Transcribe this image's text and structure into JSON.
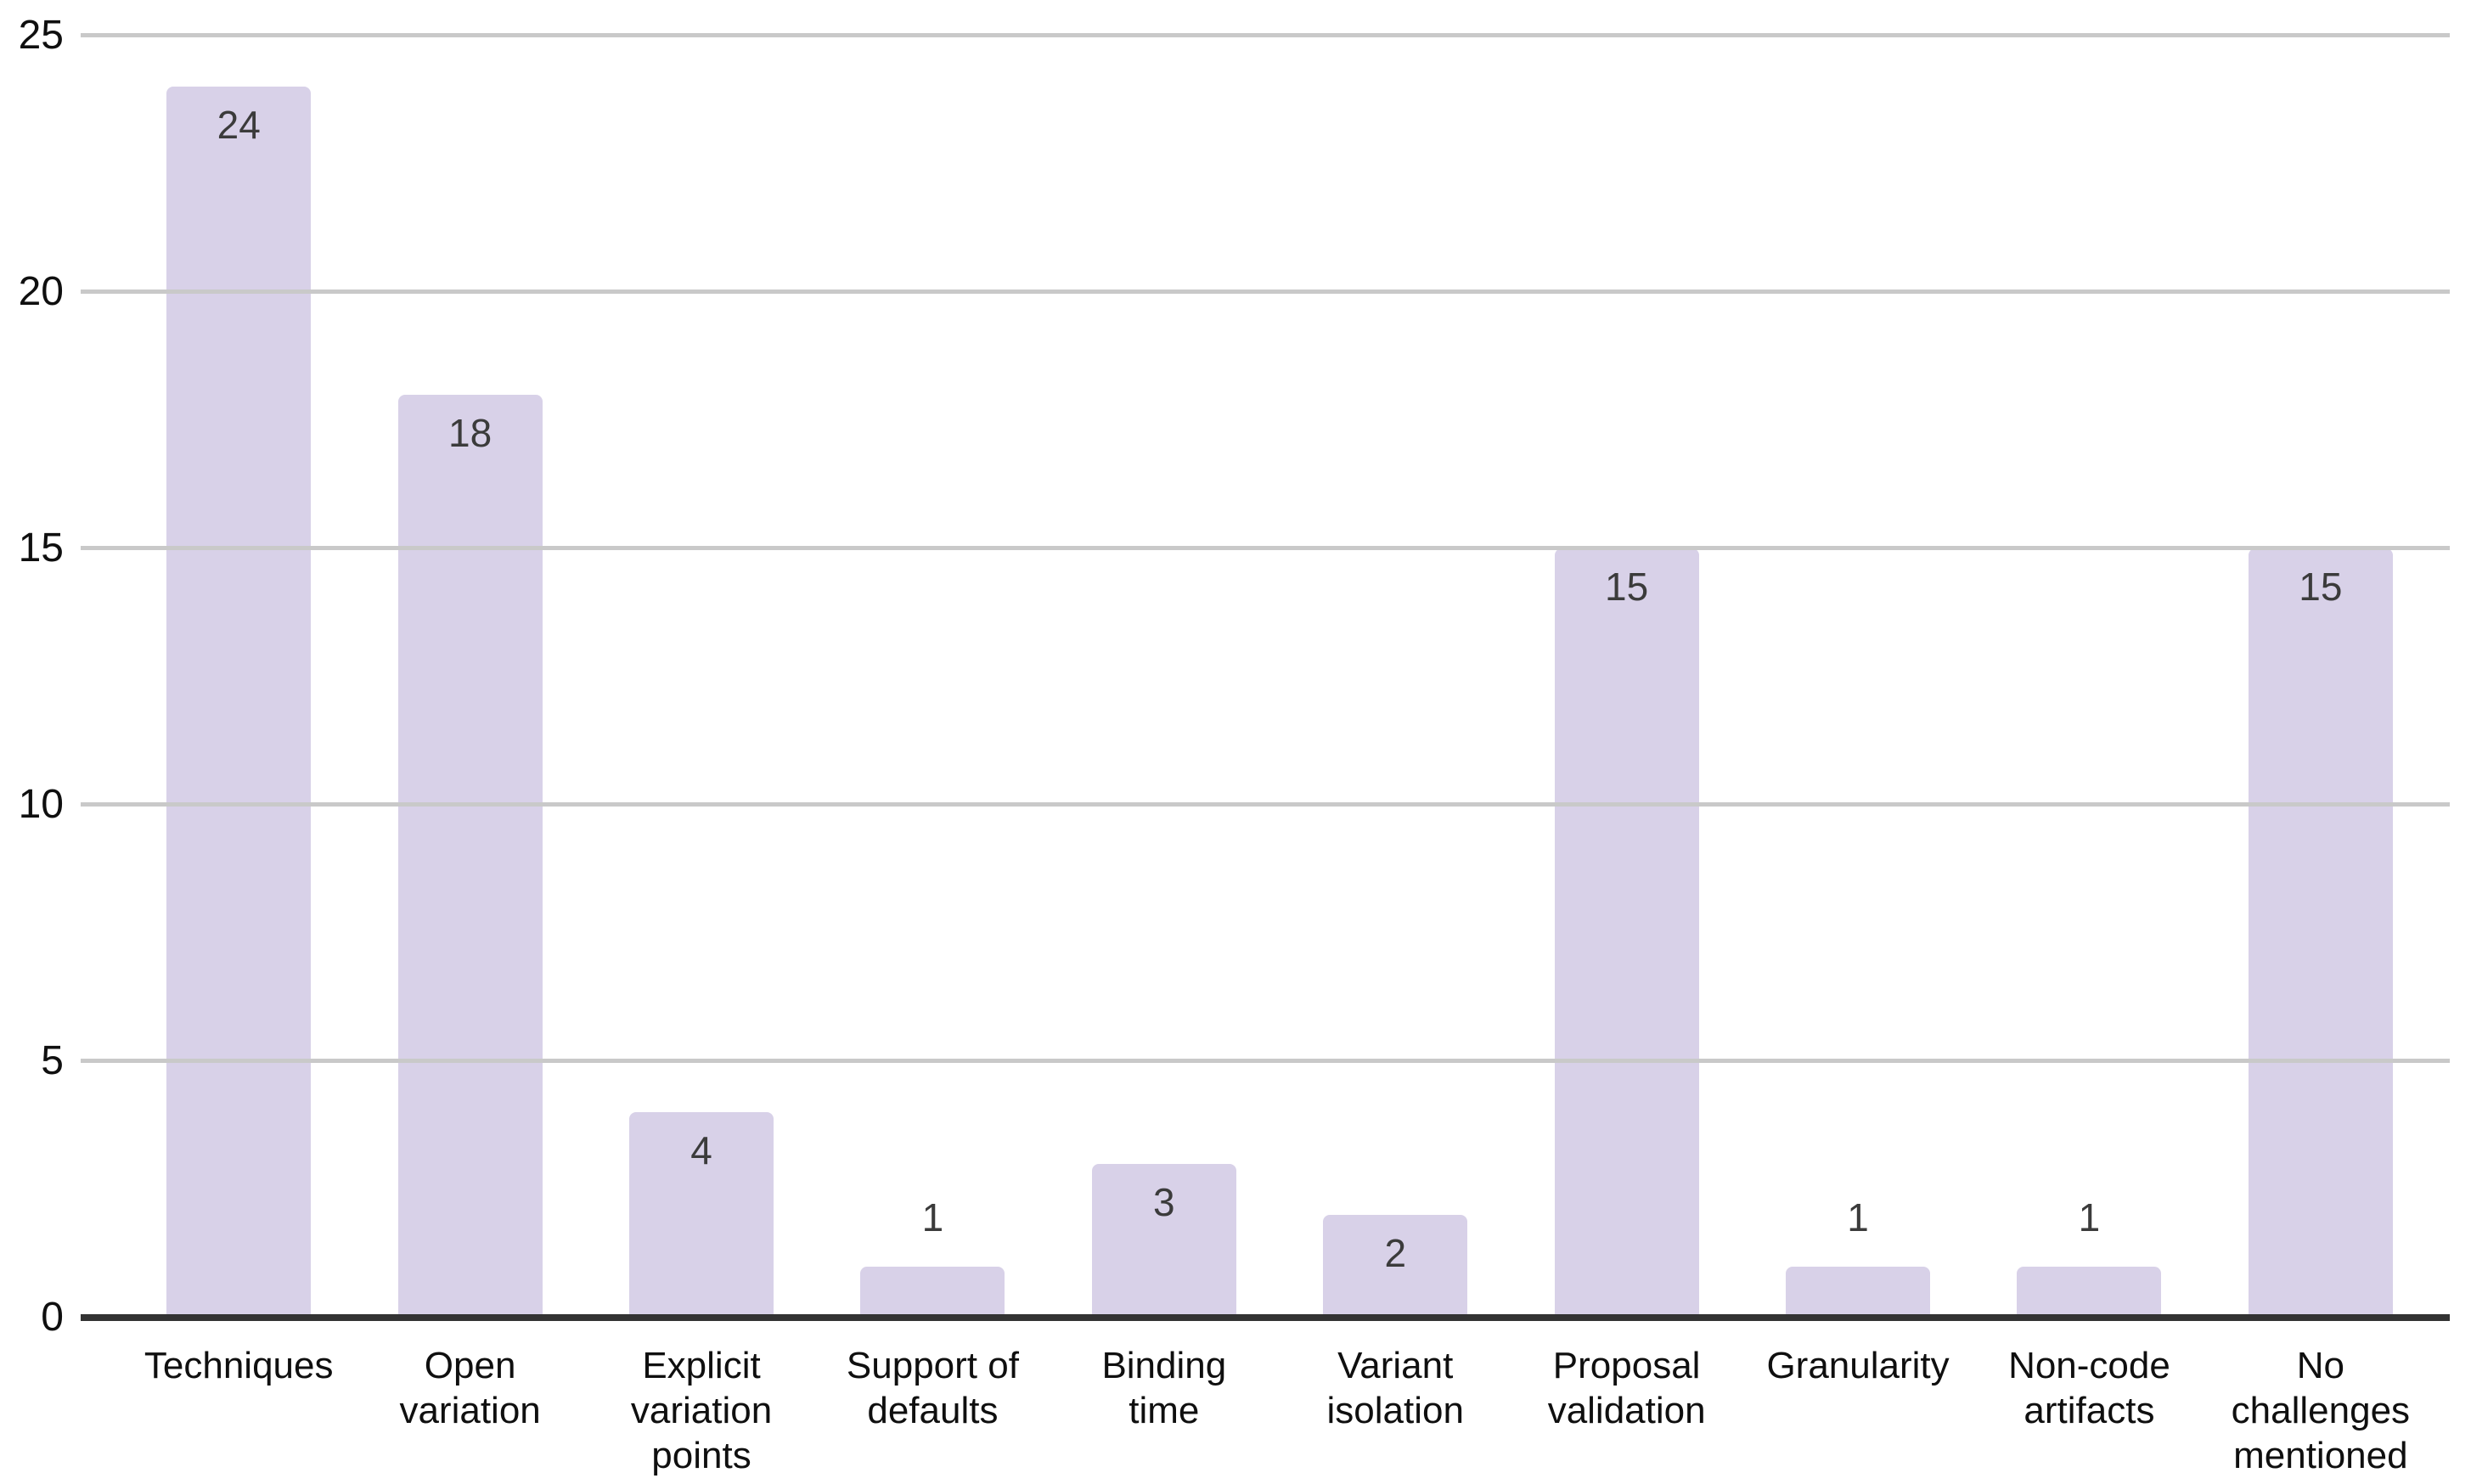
{
  "chart_data": {
    "type": "bar",
    "title": "",
    "xlabel": "",
    "ylabel": "",
    "categories": [
      "Techniques",
      "Open\nvariation",
      "Explicit\nvariation\npoints",
      "Support of\ndefaults",
      "Binding\ntime",
      "Variant\nisolation",
      "Proposal\nvalidation",
      "Granularity",
      "Non-code\nartifacts",
      "No\nchallenges\nmentioned"
    ],
    "values": [
      24,
      18,
      4,
      1,
      3,
      2,
      15,
      1,
      1,
      15
    ],
    "ylim": [
      0,
      25
    ],
    "yticks": [
      0,
      5,
      10,
      15,
      20,
      25
    ],
    "grid": true,
    "legend": "none",
    "data_labels": true,
    "colors": {
      "bar": "#D8D1E8",
      "data_label": "#3B3B3B",
      "axis_label": "#0F0F0F",
      "gridline": "#C9C9C9",
      "baseline": "#333333",
      "background": "#FFFFFF"
    }
  }
}
